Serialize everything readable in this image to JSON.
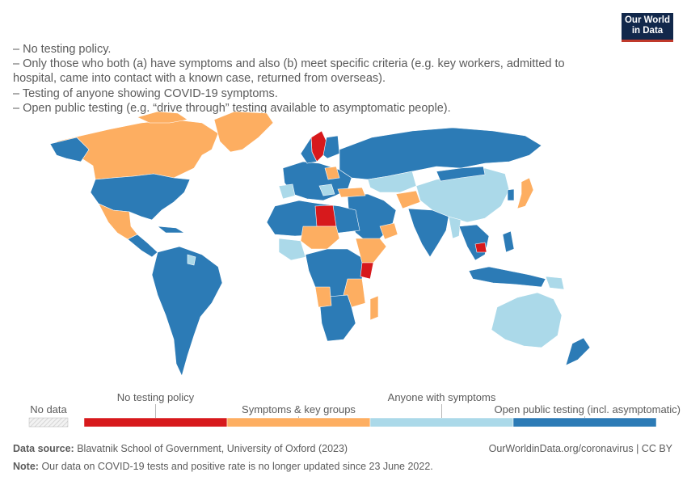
{
  "logo": {
    "line1": "Our World",
    "line2": "in Data"
  },
  "description": [
    "– No testing policy.",
    "– Only those who both (a) have symptoms and also (b) meet specific criteria (e.g. key workers, admitted to hospital, came into contact with a known case, returned from overseas).",
    "– Testing of anyone showing COVID-19 symptoms.",
    "– Open public testing (e.g. “drive through” testing available to asymptomatic people)."
  ],
  "colors": {
    "no_testing": "#d7191c",
    "symptoms_key_groups": "#fdae61",
    "anyone_symptoms": "#abd9e9",
    "open_public": "#2c7bb6",
    "no_data": "#e6e6e6"
  },
  "legend": {
    "no_data": "No data",
    "items": [
      {
        "label": "No testing policy",
        "color": "#d7191c"
      },
      {
        "label": "Symptoms & key groups",
        "color": "#fdae61"
      },
      {
        "label": "Anyone with symptoms",
        "color": "#abd9e9"
      },
      {
        "label": "Open public testing (incl. asymptomatic)",
        "color": "#2c7bb6"
      }
    ]
  },
  "map_regions": [
    {
      "name": "Canada",
      "category": "symptoms_key_groups"
    },
    {
      "name": "Greenland",
      "category": "symptoms_key_groups"
    },
    {
      "name": "United States",
      "category": "open_public"
    },
    {
      "name": "Mexico",
      "category": "symptoms_key_groups"
    },
    {
      "name": "Central America",
      "category": "open_public"
    },
    {
      "name": "South America",
      "category": "open_public"
    },
    {
      "name": "Europe",
      "category": "open_public"
    },
    {
      "name": "Sweden",
      "category": "no_testing"
    },
    {
      "name": "Russia",
      "category": "open_public"
    },
    {
      "name": "Kazakhstan",
      "category": "anyone_symptoms"
    },
    {
      "name": "China",
      "category": "anyone_symptoms"
    },
    {
      "name": "Libya",
      "category": "no_testing"
    },
    {
      "name": "Kenya",
      "category": "no_testing"
    },
    {
      "name": "Cambodia",
      "category": "no_testing"
    },
    {
      "name": "Africa",
      "category": "open_public"
    },
    {
      "name": "India",
      "category": "open_public"
    },
    {
      "name": "Japan",
      "category": "symptoms_key_groups"
    },
    {
      "name": "Australia",
      "category": "anyone_symptoms"
    },
    {
      "name": "New Zealand",
      "category": "open_public"
    },
    {
      "name": "Indonesia",
      "category": "open_public"
    }
  ],
  "footer": {
    "source_label": "Data source:",
    "source_text": "Blavatnik School of Government, University of Oxford (2023)",
    "note_label": "Note:",
    "note_text": "Our data on COVID-19 tests and positive rate is no longer updated since 23 June 2022.",
    "credit": "OurWorldinData.org/coronavirus | CC BY"
  }
}
